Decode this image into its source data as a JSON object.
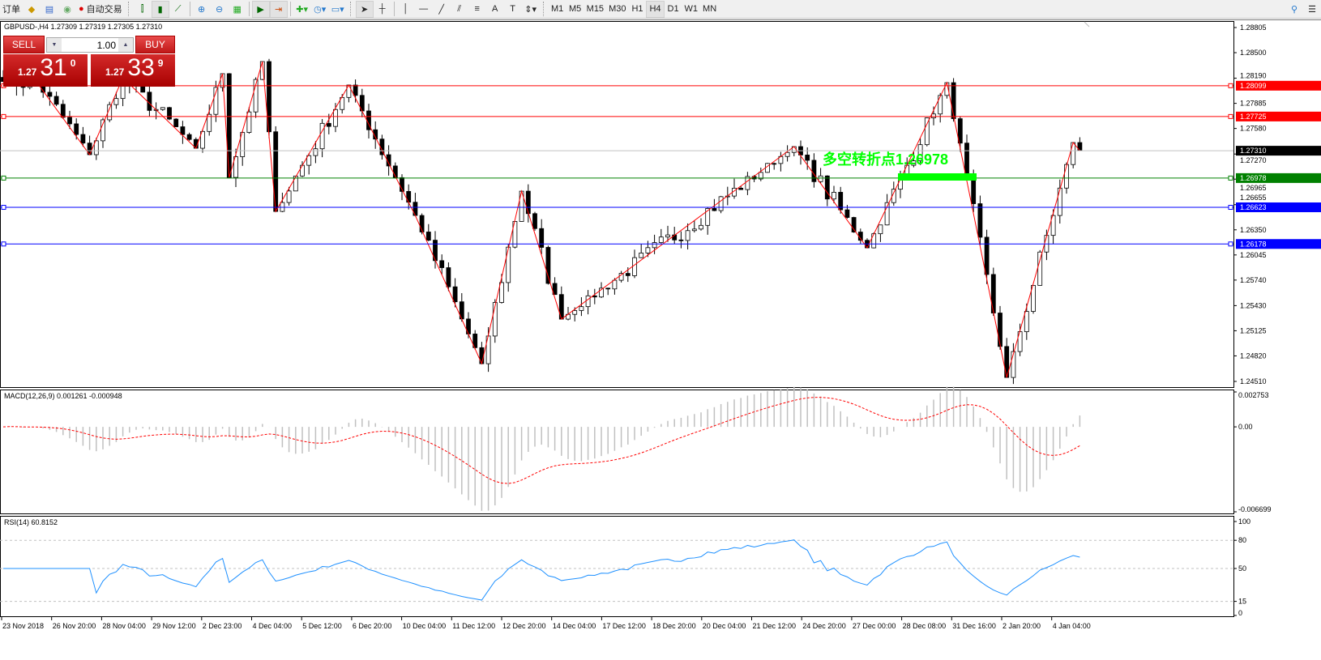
{
  "toolbar": {
    "new_order": "订单",
    "auto_trading": "自动交易",
    "timeframes": [
      "M1",
      "M5",
      "M15",
      "M30",
      "H1",
      "H4",
      "D1",
      "W1",
      "MN"
    ],
    "active_timeframe": "H4"
  },
  "chart": {
    "title": "GBPUSD-,H4  1.27309 1.27319 1.27305 1.27310",
    "sell_label": "SELL",
    "buy_label": "BUY",
    "lot": "1.00",
    "sell_price": {
      "small": "1.27",
      "big": "31",
      "pip": "0"
    },
    "buy_price": {
      "small": "1.27",
      "big": "33",
      "pip": "9"
    },
    "price_axis": [
      "1.28805",
      "1.28500",
      "1.28190",
      "1.27885",
      "1.27580",
      "1.27270",
      "1.26965",
      "1.26655",
      "1.26350",
      "1.26045",
      "1.25740",
      "1.25430",
      "1.25125",
      "1.24820",
      "1.24510"
    ],
    "price_range": [
      1.2451,
      1.28805
    ],
    "current_price": "1.27310",
    "levels": [
      {
        "price": "1.28099",
        "color": "#ff0000"
      },
      {
        "price": "1.27725",
        "color": "#ff0000"
      },
      {
        "price": "1.26978",
        "color": "#008000"
      },
      {
        "price": "1.26623",
        "color": "#0000ff"
      },
      {
        "price": "1.26178",
        "color": "#0000ff"
      }
    ],
    "annotation": "多空转折点1.26978",
    "annotation_color": "#00ff00",
    "zigzag_color": "#ff0000",
    "zigzag_pivots": [
      [
        0,
        1.2815
      ],
      [
        5,
        1.28146
      ],
      [
        13,
        1.27262
      ],
      [
        18,
        1.28196
      ],
      [
        29,
        1.2734
      ],
      [
        33,
        1.28245
      ],
      [
        34,
        1.26986
      ],
      [
        39,
        1.28392
      ],
      [
        41,
        1.26573
      ],
      [
        52,
        1.28107
      ],
      [
        62,
        1.26524
      ],
      [
        72,
        1.24725
      ],
      [
        78,
        1.26819
      ],
      [
        84,
        1.25266
      ],
      [
        119,
        1.2736
      ],
      [
        130,
        1.26131
      ],
      [
        142,
        1.28136
      ],
      [
        151,
        1.24558
      ],
      [
        161,
        1.27409
      ],
      [
        162,
        1.2731
      ]
    ],
    "time_axis": [
      "23 Nov 2018",
      "26 Nov 20:00",
      "28 Nov 04:00",
      "29 Nov 12:00",
      "2 Dec 23:00",
      "4 Dec 04:00",
      "5 Dec 12:00",
      "6 Dec 20:00",
      "10 Dec 04:00",
      "11 Dec 12:00",
      "12 Dec 20:00",
      "14 Dec 04:00",
      "17 Dec 12:00",
      "18 Dec 20:00",
      "20 Dec 04:00",
      "21 Dec 12:00",
      "24 Dec 20:00",
      "27 Dec 00:00",
      "28 Dec 08:00",
      "31 Dec 16:00",
      "2 Jan 20:00",
      "4 Jan 04:00"
    ]
  },
  "macd": {
    "label": "MACD(12,26,9) 0.001261 -0.000948",
    "axis": [
      "0.002753",
      "0.00",
      "-0.006699"
    ],
    "range": [
      -0.006699,
      0.002753
    ]
  },
  "rsi": {
    "label": "RSI(14) 60.8152",
    "axis": [
      "100",
      "80",
      "50",
      "15",
      "0"
    ],
    "color": "#1e90ff"
  }
}
